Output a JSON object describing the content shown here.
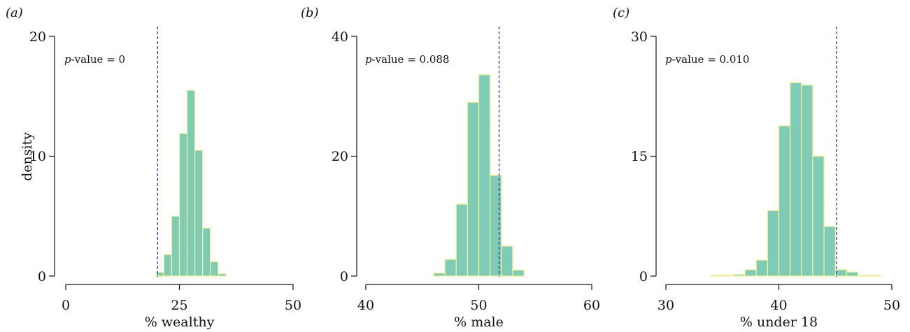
{
  "colors": {
    "bar_fill": "#7ecbb6",
    "bar_edge": "#f2ee9a",
    "reference_line": "#2b3aa8",
    "axis": "#111111"
  },
  "chart_data": [
    {
      "type": "bar",
      "panel_label": "(a)",
      "pvalue_prefix": "p",
      "pvalue_text": "-value = 0",
      "xlabel": "% wealthy",
      "ylabel": "density",
      "xlim": [
        0,
        50
      ],
      "ylim": [
        0,
        20
      ],
      "xticks": [
        0,
        25,
        50
      ],
      "yticks": [
        0,
        10,
        20
      ],
      "observed_value": 20.2,
      "bin_width": 1.7,
      "bins": [
        {
          "x0": 19.9,
          "value": 0.3
        },
        {
          "x0": 21.6,
          "value": 1.8
        },
        {
          "x0": 23.3,
          "value": 5.0
        },
        {
          "x0": 25.0,
          "value": 11.9
        },
        {
          "x0": 26.7,
          "value": 15.5
        },
        {
          "x0": 28.4,
          "value": 10.5
        },
        {
          "x0": 30.1,
          "value": 4.0
        },
        {
          "x0": 31.8,
          "value": 1.2
        },
        {
          "x0": 33.5,
          "value": 0.2
        }
      ]
    },
    {
      "type": "bar",
      "panel_label": "(b)",
      "pvalue_prefix": "p",
      "pvalue_text": "-value = 0.088",
      "xlabel": "% male",
      "ylabel": "",
      "xlim": [
        40,
        60
      ],
      "ylim": [
        0,
        40
      ],
      "xticks": [
        40,
        50,
        60
      ],
      "yticks": [
        0,
        20,
        40
      ],
      "observed_value": 51.8,
      "bin_width": 1.0,
      "bins": [
        {
          "x0": 46,
          "value": 0.5
        },
        {
          "x0": 47,
          "value": 2.8
        },
        {
          "x0": 48,
          "value": 12.0
        },
        {
          "x0": 49,
          "value": 29.0
        },
        {
          "x0": 50,
          "value": 33.6
        },
        {
          "x0": 51,
          "value": 16.8
        },
        {
          "x0": 52,
          "value": 5.0
        },
        {
          "x0": 53,
          "value": 1.0
        }
      ]
    },
    {
      "type": "bar",
      "panel_label": "(c)",
      "pvalue_prefix": "p",
      "pvalue_text": "-value = 0.010",
      "xlabel": "% under 18",
      "ylabel": "",
      "xlim": [
        30,
        50
      ],
      "ylim": [
        0,
        30
      ],
      "xticks": [
        30,
        40,
        50
      ],
      "yticks": [
        0,
        15,
        30
      ],
      "observed_value": 45.1,
      "bin_width": 1.0,
      "bins": [
        {
          "x0": 34,
          "value": 0.1
        },
        {
          "x0": 35,
          "value": 0.1
        },
        {
          "x0": 36,
          "value": 0.2
        },
        {
          "x0": 37,
          "value": 0.8
        },
        {
          "x0": 38,
          "value": 2.0
        },
        {
          "x0": 39,
          "value": 8.2
        },
        {
          "x0": 40,
          "value": 18.8
        },
        {
          "x0": 41,
          "value": 24.2
        },
        {
          "x0": 42,
          "value": 23.9
        },
        {
          "x0": 43,
          "value": 15.0
        },
        {
          "x0": 44,
          "value": 6.2
        },
        {
          "x0": 45,
          "value": 0.8
        },
        {
          "x0": 46,
          "value": 0.5
        },
        {
          "x0": 47,
          "value": 0.1
        },
        {
          "x0": 48,
          "value": 0.1
        }
      ]
    }
  ]
}
